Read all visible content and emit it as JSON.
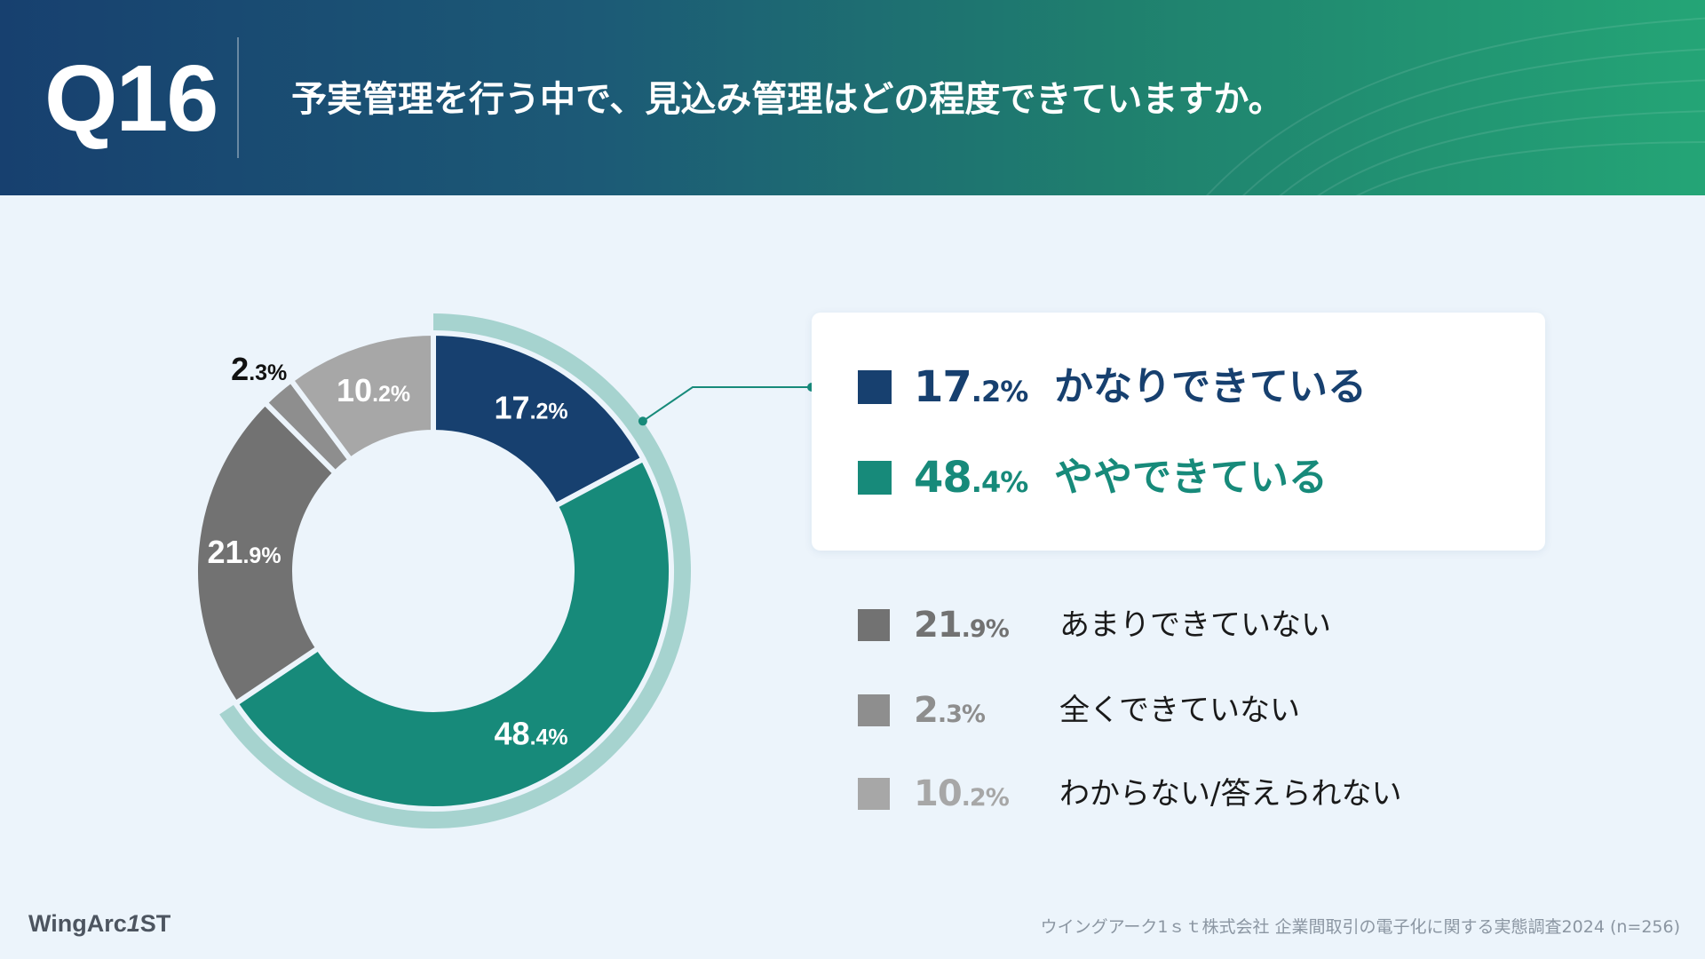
{
  "header": {
    "question_number": "Q16",
    "question_text": "予実管理を行う中で、見込み管理はどの程度できていますか。"
  },
  "chart_data": {
    "type": "pie",
    "donut": true,
    "unit": "%",
    "categories": [
      "かなりできている",
      "ややできている",
      "あまりできていない",
      "全くできていない",
      "わからない/答えられない"
    ],
    "values": [
      17.2,
      48.4,
      21.9,
      2.3,
      10.2
    ],
    "colors": [
      "#17406f",
      "#178a7a",
      "#727272",
      "#8e8e8e",
      "#a7a7a7"
    ],
    "highlight_ring_color": "#a6d3cf",
    "highlighted": [
      "かなりできている",
      "ややできている"
    ],
    "legend_placement": "right"
  },
  "footer": {
    "logo_text": "WingArc",
    "logo_mark": "1",
    "logo_suffix": "ST",
    "source": "ウイングアーク1ｓｔ株式会社 企業間取引の電子化に関する実態調査2024 (n=256)"
  }
}
